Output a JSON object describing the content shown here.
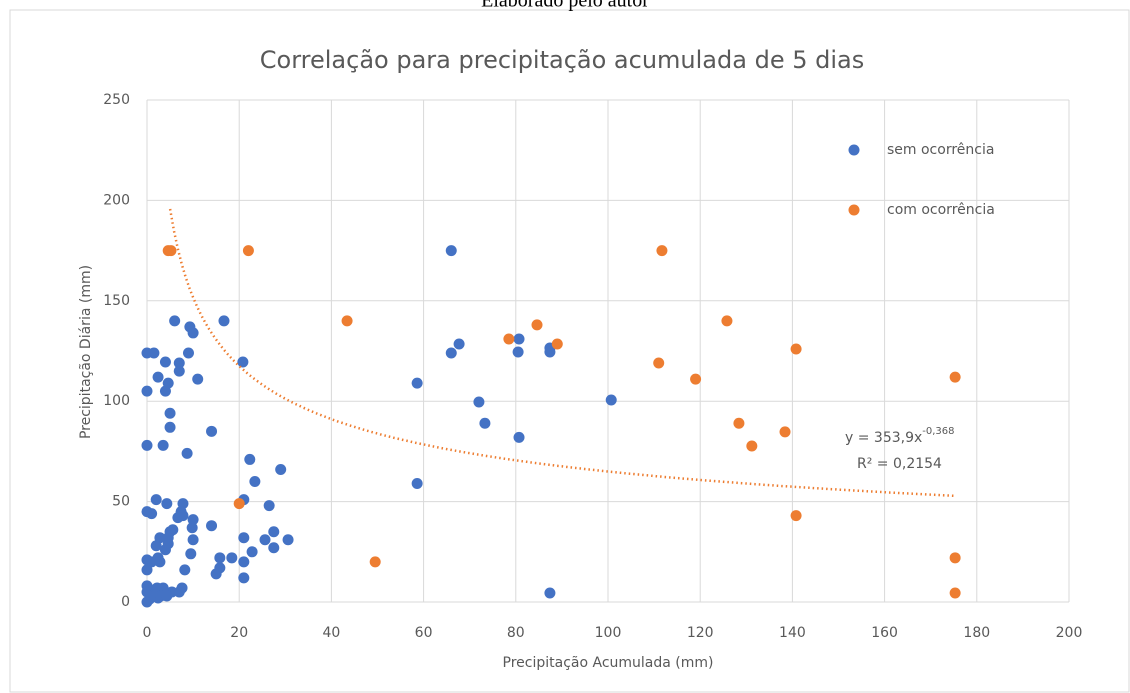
{
  "caption": "Elaborado pelo autor",
  "chart_data": {
    "type": "scatter",
    "title": "Correlação para precipitação acumulada de 5 dias",
    "x_label": "Precipitação Acumulada (mm)",
    "y_label": "Precipitação Diária (mm)",
    "xlim": [
      0,
      200
    ],
    "xticks": [
      0,
      20,
      40,
      60,
      80,
      100,
      120,
      140,
      160,
      180,
      200
    ],
    "ylim": [
      0,
      250
    ],
    "yticks": [
      0,
      50,
      100,
      150,
      200,
      250
    ],
    "grid": true,
    "legend": "top-right",
    "series": [
      {
        "name": "sem ocorrência",
        "color": "#4472c4",
        "x": [
          0,
          1.5,
          0,
          0,
          0,
          1,
          2,
          2.4,
          4,
          4,
          4.6,
          3.5,
          5,
          5,
          6,
          7,
          7,
          9,
          9.3,
          10,
          11,
          8.7,
          14,
          16.7,
          20.8,
          22.3,
          23.4,
          29,
          26.5,
          21,
          21,
          22.8,
          21,
          21,
          27.5,
          27.5,
          30.6,
          25.6,
          18.4,
          15.8,
          15.8,
          15,
          14,
          10,
          9.8,
          10,
          9.5,
          7.8,
          7.4,
          7.8,
          6.7,
          5.6,
          5,
          4.3,
          4.6,
          4,
          4.6,
          2.8,
          2,
          2.4,
          2.8,
          1,
          0,
          0,
          8.2,
          7.6,
          7,
          5.4,
          4,
          3.5,
          2.2,
          1.5,
          1,
          0.6,
          0,
          0,
          0,
          1.7,
          2.4,
          3,
          4.3,
          66,
          58.6,
          58.6,
          66,
          67.7,
          72,
          73.3,
          80.7,
          80.5,
          80.7,
          87.4,
          87.4,
          87.4,
          100.7
        ],
        "y": [
          124,
          124,
          105,
          78,
          45,
          44,
          51,
          112,
          119.5,
          105,
          109,
          78,
          94,
          87,
          140,
          119,
          115,
          124,
          137,
          134,
          111,
          74,
          85,
          140,
          119.5,
          71,
          60,
          66,
          48,
          51,
          32,
          25,
          20,
          12,
          35,
          27,
          31,
          31,
          22,
          22,
          17,
          14,
          38,
          41,
          37,
          31,
          24,
          49,
          45,
          43,
          42,
          36,
          35,
          49,
          32,
          26,
          29,
          32,
          28,
          22,
          20,
          20,
          21,
          16,
          16,
          7,
          5,
          5,
          5,
          7,
          7,
          6,
          3,
          1.5,
          0,
          5,
          8,
          3,
          2,
          3,
          3,
          175,
          109,
          59,
          124,
          128.5,
          99.6,
          89,
          131,
          124.5,
          82,
          126.5,
          124.5,
          4.5,
          100.6
        ]
      },
      {
        "name": "com ocorrência",
        "color": "#ed7d31",
        "x": [
          4.6,
          5.2,
          22,
          20,
          43.4,
          49.5,
          78.5,
          84.6,
          89,
          111.7,
          111,
          119,
          125.8,
          128.4,
          131.2,
          138.4,
          140.8,
          140.8,
          175.3,
          175.3,
          175.3
        ],
        "y": [
          175,
          175,
          175,
          49,
          140,
          20,
          131,
          138,
          128.5,
          175,
          119,
          111,
          140,
          89,
          77.7,
          84.7,
          126,
          43,
          112,
          22,
          4.5
        ]
      }
    ],
    "trendline": {
      "coefficient": 353.9,
      "exponent": -0.368,
      "x_range": [
        5,
        175
      ],
      "color": "#ed7d31",
      "label": "y = 353,9x",
      "exponent_label": "-0,368",
      "r2_label": "R² = 0,2154"
    }
  }
}
